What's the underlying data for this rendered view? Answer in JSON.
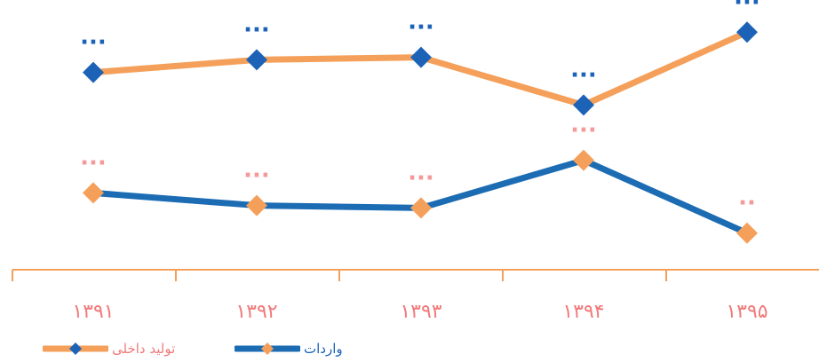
{
  "chart_data": {
    "type": "line",
    "categories": [
      "۱۳۹۱",
      "۱۳۹۲",
      "۱۳۹۳",
      "۱۳۹۴",
      "۱۳۹۵"
    ],
    "series": [
      {
        "name": "تولید داخلی",
        "values": [
          74,
          79,
          80,
          61,
          90
        ],
        "data_labels": [
          "...",
          "...",
          "...",
          "...",
          "..."
        ],
        "line_color": "#F5A05A",
        "marker_color": "#1C63B7",
        "label_color": "#1C63B7"
      },
      {
        "name": "واردات",
        "values": [
          26,
          21,
          20,
          39,
          10
        ],
        "data_labels": [
          "...",
          "...",
          "...",
          "...",
          ".."
        ],
        "line_color": "#1C6CB4",
        "marker_color": "#F5A05A",
        "label_color": "#F59A9A"
      }
    ],
    "ylim": [
      0,
      100
    ],
    "axis_color": "#F5A05A",
    "tick_label_color": "#F07A7A",
    "grid": false,
    "legend_position": "bottom-left"
  }
}
